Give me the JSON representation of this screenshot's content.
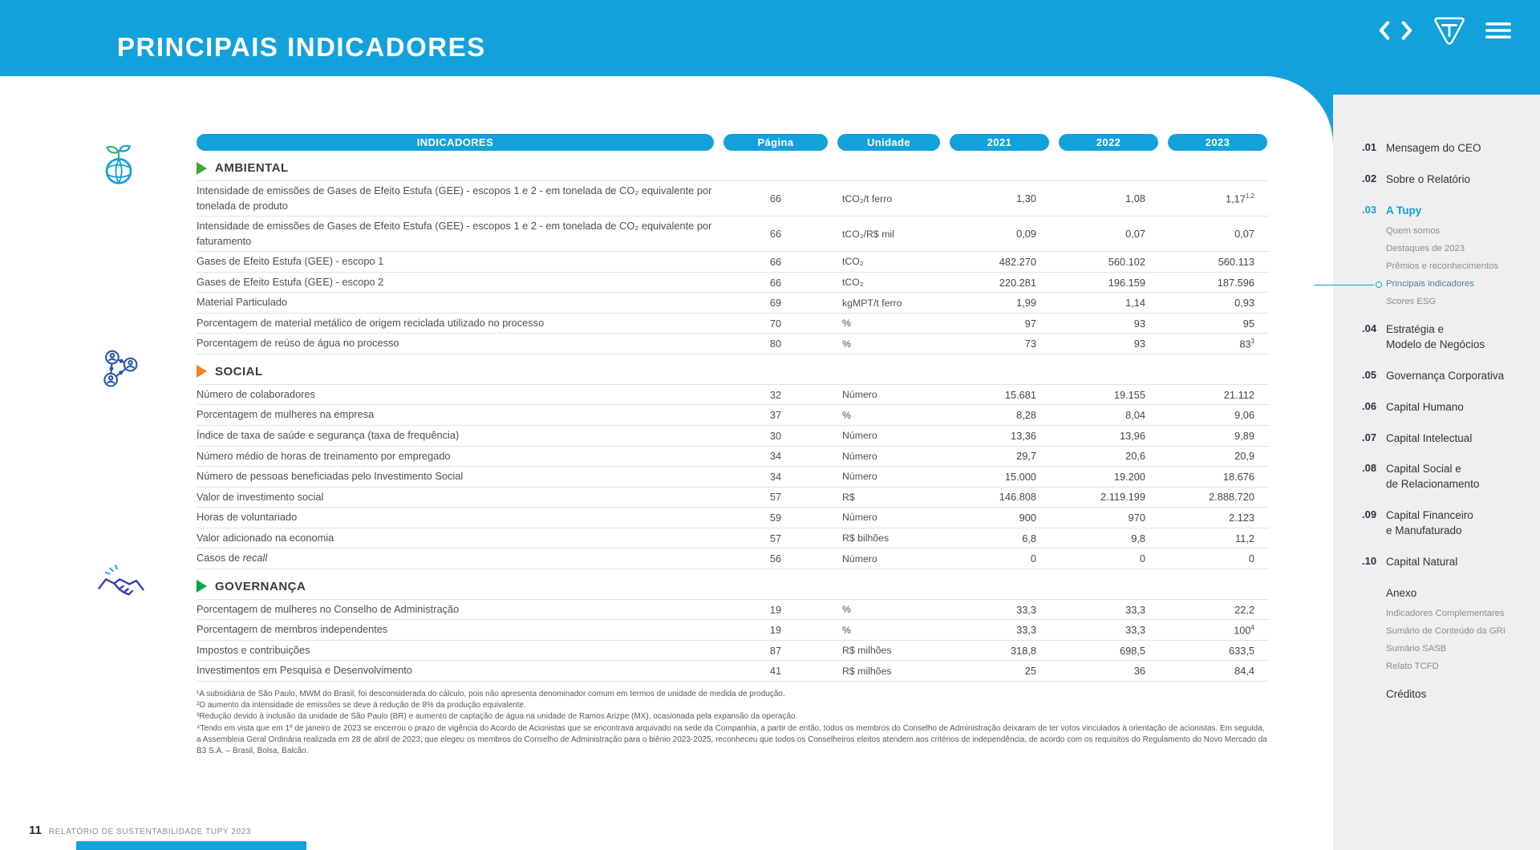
{
  "colors": {
    "brand_blue": "#12A1DA",
    "sidebar_bg": "#EFEFEF",
    "ambiental_accent": "#3AAA35",
    "social_accent": "#F5821F",
    "governanca_accent": "#0EA04C"
  },
  "header": {
    "title": "PRINCIPAIS INDICADORES",
    "icons": [
      "chevron-left-icon",
      "chevron-right-icon",
      "tupy-logo-icon",
      "menu-icon"
    ]
  },
  "table": {
    "columns": [
      "INDICADORES",
      "Página",
      "Unidade",
      "2021",
      "2022",
      "2023"
    ],
    "sections": [
      {
        "id": "ambiental",
        "name": "AMBIENTAL",
        "icon": "planet-leaf-icon",
        "accent": "#3AAA35",
        "rows": [
          {
            "indicator": "Intensidade de emissões de Gases de Efeito Estufa (GEE) - escopos 1 e 2 - em tonelada de CO₂ equivalente por tonelada de produto",
            "page": "66",
            "unit": "tCO₂/t ferro",
            "values": [
              "1,30",
              "1,08",
              {
                "v": "1,17",
                "sup": "1,2"
              }
            ]
          },
          {
            "indicator": "Intensidade de emissões de Gases de Efeito Estufa (GEE) - escopos 1 e 2 - em tonelada de CO₂ equivalente por faturamento",
            "page": "66",
            "unit": "tCO₂/R$ mil",
            "values": [
              "0,09",
              "0,07",
              "0,07"
            ]
          },
          {
            "indicator": "Gases de Efeito Estufa (GEE) - escopo 1",
            "page": "66",
            "unit": "tCO₂",
            "values": [
              "482.270",
              "560.102",
              "560.113"
            ]
          },
          {
            "indicator": "Gases de Efeito Estufa (GEE) - escopo 2",
            "page": "66",
            "unit": "tCO₂",
            "values": [
              "220.281",
              "196.159",
              "187.596"
            ]
          },
          {
            "indicator": "Material Particulado",
            "page": "69",
            "unit": "kgMPT/t ferro",
            "values": [
              "1,99",
              "1,14",
              "0,93"
            ]
          },
          {
            "indicator": "Porcentagem de material metálico de origem reciclada utilizado no processo",
            "page": "70",
            "unit": "%",
            "values": [
              "97",
              "93",
              "95"
            ]
          },
          {
            "indicator": "Porcentagem de reúso de água no processo",
            "page": "80",
            "unit": "%",
            "values": [
              "73",
              "93",
              {
                "v": "83",
                "sup": "3"
              }
            ]
          }
        ]
      },
      {
        "id": "social",
        "name": "SOCIAL",
        "icon": "people-network-icon",
        "accent": "#F5821F",
        "rows": [
          {
            "indicator": "Número de colaboradores",
            "page": "32",
            "unit": "Número",
            "values": [
              "15.681",
              "19.155",
              "21.112"
            ]
          },
          {
            "indicator": "Porcentagem de mulheres na empresa",
            "page": "37",
            "unit": "%",
            "values": [
              "8,28",
              "8,04",
              "9,06"
            ]
          },
          {
            "indicator": "Índice de taxa de saúde e segurança (taxa de frequência)",
            "page": "30",
            "unit": "Número",
            "values": [
              "13,36",
              "13,96",
              "9,89"
            ]
          },
          {
            "indicator": "Número médio de horas de treinamento por empregado",
            "page": "34",
            "unit": "Número",
            "values": [
              "29,7",
              "20,6",
              "20,9"
            ]
          },
          {
            "indicator": "Número de pessoas beneficiadas pelo Investimento Social",
            "page": "34",
            "unit": "Número",
            "values": [
              "15.000",
              "19.200",
              "18.676"
            ]
          },
          {
            "indicator": "Valor de investimento social",
            "page": "57",
            "unit": "R$",
            "values": [
              "146.808",
              "2.119.199",
              "2.888.720"
            ]
          },
          {
            "indicator": "Horas de voluntariado",
            "page": "59",
            "unit": "Número",
            "values": [
              "900",
              "970",
              "2.123"
            ]
          },
          {
            "indicator": "Valor adicionado na economia",
            "page": "57",
            "unit": "R$ bilhões",
            "values": [
              "6,8",
              "9,8",
              "11,2"
            ]
          },
          {
            "indicator": "Casos de *recall*",
            "page": "56",
            "unit": "Número",
            "values": [
              "0",
              "0",
              "0"
            ]
          }
        ]
      },
      {
        "id": "governanca",
        "name": "GOVERNANÇA",
        "icon": "handshake-icon",
        "accent": "#0EA04C",
        "rows": [
          {
            "indicator": "Porcentagem de mulheres no Conselho de Administração",
            "page": "19",
            "unit": "%",
            "values": [
              "33,3",
              "33,3",
              "22,2"
            ]
          },
          {
            "indicator": "Porcentagem de membros independentes",
            "page": "19",
            "unit": "%",
            "values": [
              "33,3",
              "33,3",
              {
                "v": "100",
                "sup": "4"
              }
            ]
          },
          {
            "indicator": "Impostos e contribuições",
            "page": "87",
            "unit": "R$ milhões",
            "values": [
              "318,8",
              "698,5",
              "633,5"
            ]
          },
          {
            "indicator": "Investimentos em Pesquisa e Desenvolvimento",
            "page": "41",
            "unit": "R$ milhões",
            "values": [
              "25",
              "36",
              "84,4"
            ]
          }
        ]
      }
    ]
  },
  "footnotes": [
    "¹A subsidiária de São Paulo, MWM do Brasil, foi desconsiderada do cálculo, pois não apresenta denominador comum em termos de unidade de medida de produção.",
    "²O aumento da intensidade de emissões se deve à redução de 8% da produção equivalente.",
    "³Redução devido à inclusão da unidade de São Paulo (BR) e aumento de captação de água na unidade de Ramos Arizpe (MX), ocasionada pela expansão da operação.",
    "⁴Tendo em vista que em 1º de janeiro de 2023 se encerrou o prazo de vigência do Acordo de Acionistas que se encontrava arquivado na sede da Companhia, a partir de então, todos os membros do Conselho de Administração deixaram de ter votos vinculados à orientação de acionistas. Em seguida, a Assembleia Geral Ordinária realizada em 28 de abril de 2023, que elegeu os membros do Conselho de Administração para o biênio 2023-2025, reconheceu que todos os Conselheiros eleitos atendem aos critérios de independência, de acordo com os requisitos do Regulamento do Novo Mercado da B3 S.A. – Brasil, Bolsa, Balcão."
  ],
  "sidebar": {
    "items": [
      {
        "id": "01",
        "num": ".01",
        "label": "Mensagem do CEO"
      },
      {
        "id": "02",
        "num": ".02",
        "label": "Sobre o Relatório"
      },
      {
        "id": "03",
        "num": ".03",
        "label": "A Tupy",
        "active": true,
        "children": [
          {
            "label": "Quem somos"
          },
          {
            "label": "Destaques de 2023"
          },
          {
            "label": "Prêmios e reconhecimentos"
          },
          {
            "label": "Principais indicadores",
            "current": true
          },
          {
            "label": "*Scores* ESG"
          }
        ]
      },
      {
        "id": "04",
        "num": ".04",
        "label": "Estratégia e\nModelo de Negócios"
      },
      {
        "id": "05",
        "num": ".05",
        "label": "Governança Corporativa"
      },
      {
        "id": "06",
        "num": ".06",
        "label": "Capital Humano"
      },
      {
        "id": "07",
        "num": ".07",
        "label": "Capital Intelectual"
      },
      {
        "id": "08",
        "num": ".08",
        "label": "Capital Social e\nde Relacionamento"
      },
      {
        "id": "09",
        "num": ".09",
        "label": "Capital Financeiro\ne Manufaturado"
      },
      {
        "id": "10",
        "num": ".10",
        "label": "Capital Natural"
      },
      {
        "id": "anexo",
        "label": "Anexo",
        "children": [
          {
            "label": "Indicadores Complementares"
          },
          {
            "label": "Sumário de Conteúdo da GRI"
          },
          {
            "label": "Sumário SASB"
          },
          {
            "label": "Relato TCFD"
          }
        ]
      },
      {
        "id": "creditos",
        "label": "Créditos"
      }
    ]
  },
  "footer": {
    "page_number": "11",
    "label": "RELATÓRIO DE SUSTENTABILIDADE TUPY 2023"
  }
}
